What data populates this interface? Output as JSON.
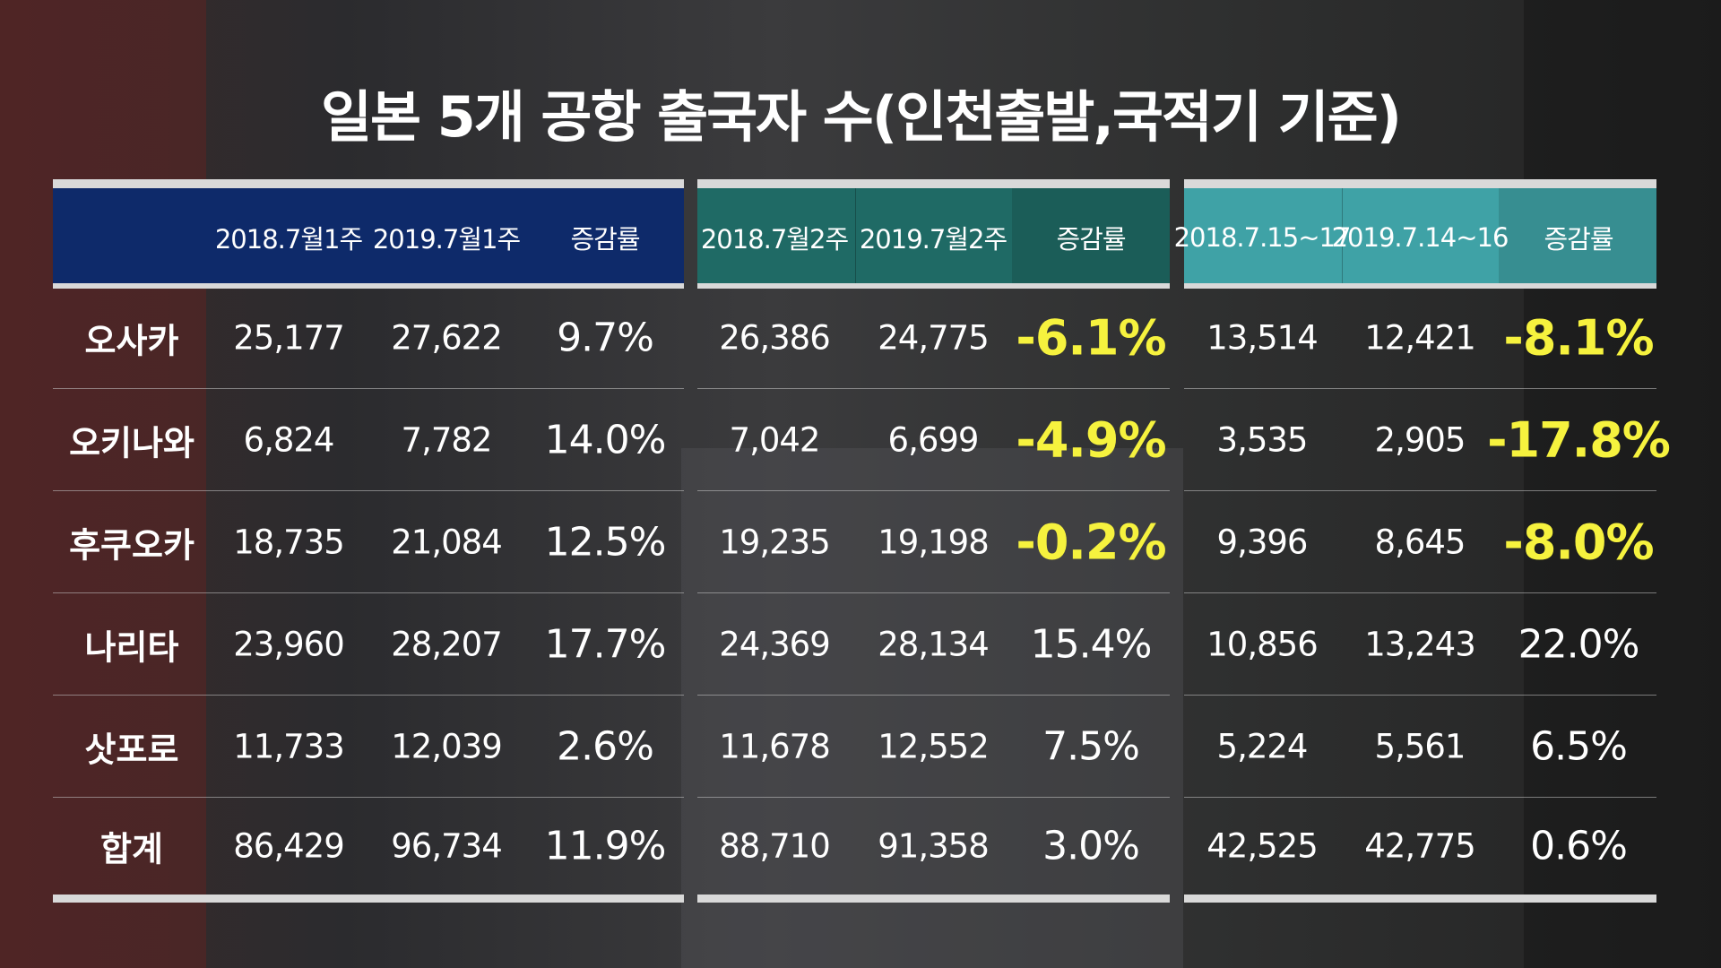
{
  "title": "일본 5개 공항 출국자 수(인천출발,국적기 기준)",
  "row_labels": [
    "오사카",
    "오키나와",
    "후쿠오카",
    "나리타",
    "삿포로",
    "합계"
  ],
  "highlight_color": "#f6f23e",
  "groups": [
    {
      "header_color": "#0e2a6a",
      "headers": [
        "2018.7월1주",
        "2019.7월1주",
        "증감률"
      ],
      "rows": [
        [
          "25,177",
          "27,622",
          "9.7%"
        ],
        [
          "6,824",
          "7,782",
          "14.0%"
        ],
        [
          "18,735",
          "21,084",
          "12.5%"
        ],
        [
          "23,960",
          "28,207",
          "17.7%"
        ],
        [
          "11,733",
          "12,039",
          "2.6%"
        ],
        [
          "86,429",
          "96,734",
          "11.9%"
        ]
      ]
    },
    {
      "header_color": "#1f6a65",
      "headers": [
        "2018.7월2주",
        "2019.7월2주",
        "증감률"
      ],
      "rows": [
        [
          "26,386",
          "24,775",
          "-6.1%"
        ],
        [
          "7,042",
          "6,699",
          "-4.9%"
        ],
        [
          "19,235",
          "19,198",
          "-0.2%"
        ],
        [
          "24,369",
          "28,134",
          "15.4%"
        ],
        [
          "11,678",
          "12,552",
          "7.5%"
        ],
        [
          "88,710",
          "91,358",
          "3.0%"
        ]
      ]
    },
    {
      "header_color": "#3fa2a6",
      "headers": [
        "2018.7.15~17",
        "2019.7.14~16",
        "증감률"
      ],
      "rows": [
        [
          "13,514",
          "12,421",
          "-8.1%"
        ],
        [
          "3,535",
          "2,905",
          "-17.8%"
        ],
        [
          "9,396",
          "8,645",
          "-8.0%"
        ],
        [
          "10,856",
          "13,243",
          "22.0%"
        ],
        [
          "5,224",
          "5,561",
          "6.5%"
        ],
        [
          "42,525",
          "42,775",
          "0.6%"
        ]
      ]
    }
  ]
}
